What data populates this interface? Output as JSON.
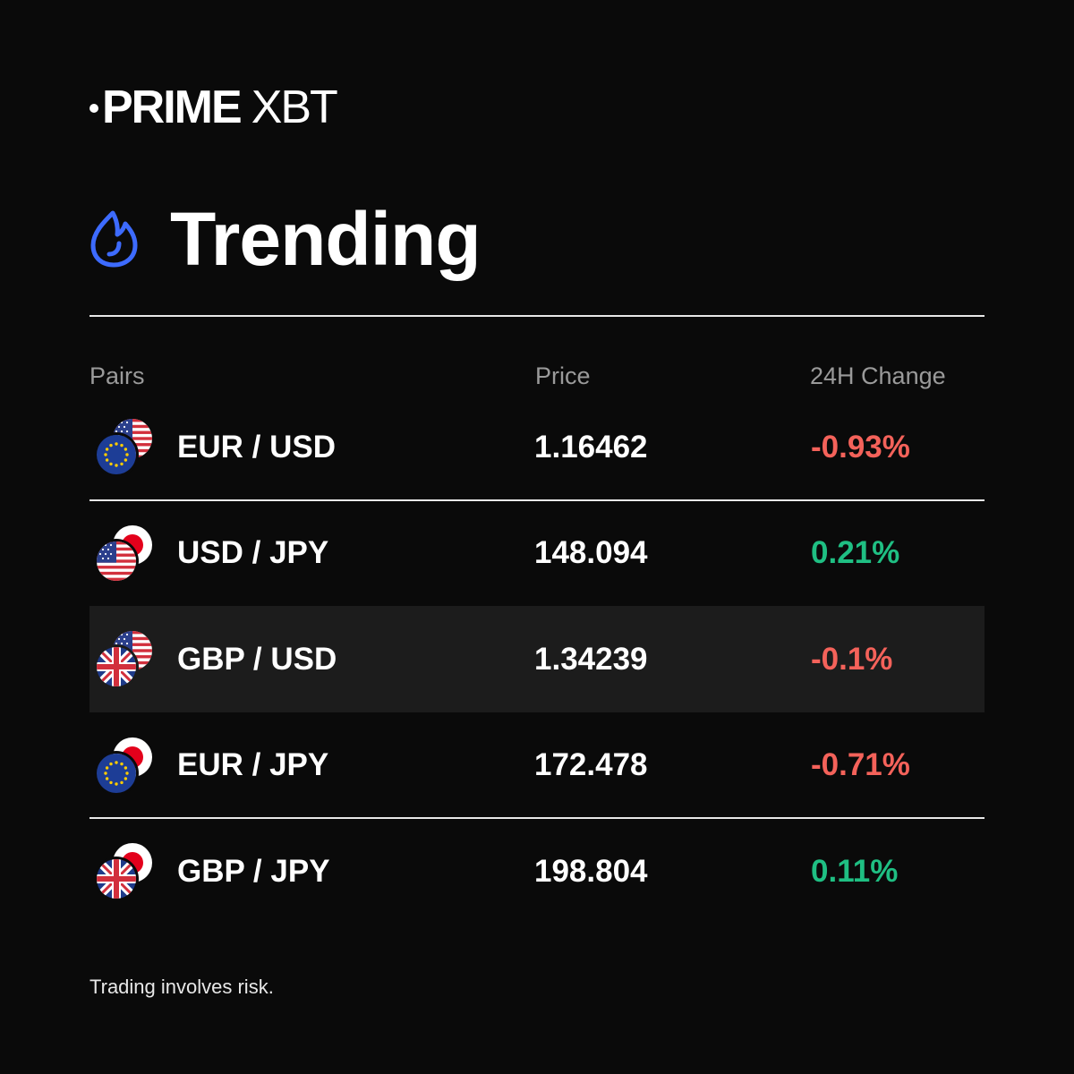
{
  "brand": {
    "name_bold": "PRIME",
    "name_light": "XBT"
  },
  "page": {
    "title": "Trending",
    "title_icon": "flame-icon"
  },
  "table": {
    "headers": {
      "pairs": "Pairs",
      "price": "Price",
      "change": "24H Change"
    },
    "rows": [
      {
        "pair": "EUR / USD",
        "price": "1.16462",
        "change": "-0.93%",
        "direction": "negative",
        "flag_back": "us-flag-icon",
        "flag_front": "eu-flag-icon",
        "highlighted": false,
        "divider": true
      },
      {
        "pair": "USD / JPY",
        "price": "148.094",
        "change": "0.21%",
        "direction": "positive",
        "flag_back": "jp-flag-icon",
        "flag_front": "us-flag-icon",
        "highlighted": false,
        "divider": false
      },
      {
        "pair": "GBP / USD",
        "price": "1.34239",
        "change": "-0.1%",
        "direction": "negative",
        "flag_back": "us-flag-icon",
        "flag_front": "uk-flag-icon",
        "highlighted": true,
        "divider": false
      },
      {
        "pair": "EUR / JPY",
        "price": "172.478",
        "change": "-0.71%",
        "direction": "negative",
        "flag_back": "jp-flag-icon",
        "flag_front": "eu-flag-icon",
        "highlighted": false,
        "divider": true
      },
      {
        "pair": "GBP / JPY",
        "price": "198.804",
        "change": "0.11%",
        "direction": "positive",
        "flag_back": "jp-flag-icon",
        "flag_front": "uk-flag-icon",
        "highlighted": false,
        "divider": false
      }
    ]
  },
  "footer": {
    "disclaimer": "Trading involves risk."
  },
  "colors": {
    "background": "#0a0a0a",
    "negative": "#f4625a",
    "positive": "#1fbf83",
    "accent": "#3d6bff"
  }
}
